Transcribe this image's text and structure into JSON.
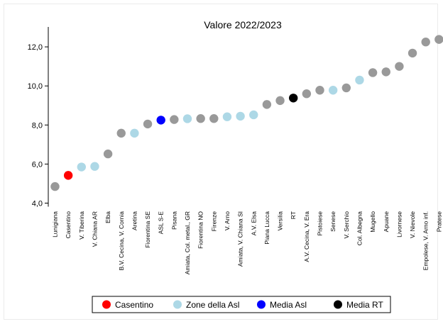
{
  "chart_data": {
    "type": "scatter",
    "title": "Valore 2022/2023",
    "xlabel": "",
    "ylabel": "",
    "ylim": [
      4.0,
      12.8
    ],
    "yticks": [
      "4,0",
      "6,0",
      "8,0",
      "10,0",
      "12,0"
    ],
    "ytick_values": [
      4,
      6,
      8,
      10,
      12
    ],
    "grid": false,
    "legend_position": "bottom",
    "colors": {
      "casentino": "#ff0000",
      "zone": "#add8e6",
      "media_asl": "#0000ff",
      "media_rt": "#000000",
      "other": "#999999"
    },
    "points": [
      {
        "label": "Lunigiana",
        "value": 4.85,
        "group": "other"
      },
      {
        "label": "Casentino",
        "value": 5.42,
        "group": "casentino"
      },
      {
        "label": "V. Tiberina",
        "value": 5.85,
        "group": "zone"
      },
      {
        "label": "V. Chiana AR",
        "value": 5.88,
        "group": "zone"
      },
      {
        "label": "Elba",
        "value": 6.52,
        "group": "other"
      },
      {
        "label": "B.V. Cecina, V. Cornia",
        "value": 7.58,
        "group": "other"
      },
      {
        "label": "Aretina",
        "value": 7.58,
        "group": "zone"
      },
      {
        "label": "Fiorentina SE",
        "value": 8.05,
        "group": "other"
      },
      {
        "label": "ASL S-E",
        "value": 8.25,
        "group": "media_asl"
      },
      {
        "label": "Pisana",
        "value": 8.28,
        "group": "other"
      },
      {
        "label": "Amiata, Col. metal., GR",
        "value": 8.32,
        "group": "zone"
      },
      {
        "label": "Fiorentina NO",
        "value": 8.33,
        "group": "other"
      },
      {
        "label": "Firenze",
        "value": 8.33,
        "group": "other"
      },
      {
        "label": "V. Arno",
        "value": 8.42,
        "group": "zone"
      },
      {
        "label": "Amiata, V. Chiana SI",
        "value": 8.45,
        "group": "zone"
      },
      {
        "label": "A.V. Elsa",
        "value": 8.52,
        "group": "zone"
      },
      {
        "label": "Piana Lucca",
        "value": 9.05,
        "group": "other"
      },
      {
        "label": "Versilia",
        "value": 9.25,
        "group": "other"
      },
      {
        "label": "RT",
        "value": 9.38,
        "group": "media_rt"
      },
      {
        "label": "A.V. Cecina, V. Era",
        "value": 9.6,
        "group": "other"
      },
      {
        "label": "Pistoiese",
        "value": 9.78,
        "group": "other"
      },
      {
        "label": "Senese",
        "value": 9.78,
        "group": "zone"
      },
      {
        "label": "V. Serchio",
        "value": 9.9,
        "group": "other"
      },
      {
        "label": "Col. Albegna",
        "value": 10.3,
        "group": "zone"
      },
      {
        "label": "Mugello",
        "value": 10.68,
        "group": "other"
      },
      {
        "label": "Apuane",
        "value": 10.72,
        "group": "other"
      },
      {
        "label": "Livornese",
        "value": 11.0,
        "group": "other"
      },
      {
        "label": "V. Nievole",
        "value": 11.68,
        "group": "other"
      },
      {
        "label": "Empolese, V. Arno inf.",
        "value": 12.25,
        "group": "other"
      },
      {
        "label": "Pratese",
        "value": 12.38,
        "group": "other"
      }
    ],
    "legend": [
      {
        "label": "Casentino",
        "group": "casentino"
      },
      {
        "label": "Zone della Asl",
        "group": "zone"
      },
      {
        "label": "Media Asl",
        "group": "media_asl"
      },
      {
        "label": "Media RT",
        "group": "media_rt"
      }
    ]
  }
}
